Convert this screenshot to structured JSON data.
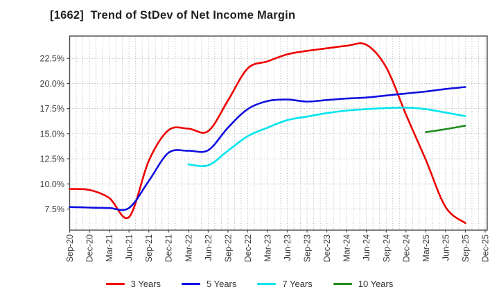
{
  "title": "[1662]  Trend of StDev of Net Income Margin",
  "chart_data": {
    "type": "line",
    "title": "[1662]  Trend of StDev of Net Income Margin",
    "unit": "%",
    "categories": [
      "Sep-20",
      "Dec-20",
      "Mar-21",
      "Jun-21",
      "Sep-21",
      "Dec-21",
      "Mar-22",
      "Jun-22",
      "Sep-22",
      "Dec-22",
      "Mar-23",
      "Jun-23",
      "Sep-23",
      "Dec-23",
      "Mar-24",
      "Jun-24",
      "Sep-24",
      "Dec-24",
      "Mar-25",
      "Jun-25",
      "Sep-25",
      "Dec-25"
    ],
    "y_tick_labels": [
      "7.5%",
      "10.0%",
      "12.5%",
      "15.0%",
      "17.5%",
      "20.0%",
      "22.5%"
    ],
    "y_ticks": [
      7.5,
      10.0,
      12.5,
      15.0,
      17.5,
      20.0,
      22.5
    ],
    "ylim": [
      5.4,
      24.72
    ],
    "grid": "dotted gray; vertical lines monthly, horizontal every 2.5%",
    "legend_position": "bottom-center",
    "series": [
      {
        "name": "3 Years",
        "color": "#ee0000",
        "values": [
          9.5,
          9.4,
          8.6,
          6.7,
          12.3,
          15.35,
          15.5,
          15.25,
          18.3,
          21.5,
          22.2,
          22.9,
          23.25,
          23.5,
          23.75,
          23.85,
          21.6,
          16.9,
          12.4,
          7.7,
          6.1,
          null
        ]
      },
      {
        "name": "5 Years",
        "color": "#0f0fe0",
        "values": [
          7.7,
          7.65,
          7.6,
          7.6,
          10.3,
          13.1,
          13.3,
          13.35,
          15.6,
          17.45,
          18.25,
          18.4,
          18.2,
          18.35,
          18.5,
          18.6,
          18.8,
          19.0,
          19.2,
          19.45,
          19.65,
          null
        ]
      },
      {
        "name": "7 Years",
        "color": "#00e5ee",
        "values": [
          null,
          null,
          null,
          null,
          null,
          null,
          11.95,
          11.85,
          13.3,
          14.75,
          15.6,
          16.35,
          16.7,
          17.05,
          17.3,
          17.45,
          17.55,
          17.6,
          17.45,
          17.1,
          16.75,
          null
        ]
      },
      {
        "name": "10 Years",
        "color": "#1e8c1e",
        "values": [
          null,
          null,
          null,
          null,
          null,
          null,
          null,
          null,
          null,
          null,
          null,
          null,
          null,
          null,
          null,
          null,
          null,
          null,
          15.15,
          15.45,
          15.8,
          null
        ]
      }
    ]
  },
  "legend": {
    "items": [
      {
        "label": "3 Years",
        "color": "#ee0000"
      },
      {
        "label": "5 Years",
        "color": "#0f0fe0"
      },
      {
        "label": "7 Years",
        "color": "#00e5ee"
      },
      {
        "label": "10 Years",
        "color": "#1e8c1e"
      }
    ]
  },
  "style": {
    "axis_color": "#4a4a4a",
    "grid_color": "#9a9a9a",
    "tick_label_color": "#3c3c3c"
  }
}
